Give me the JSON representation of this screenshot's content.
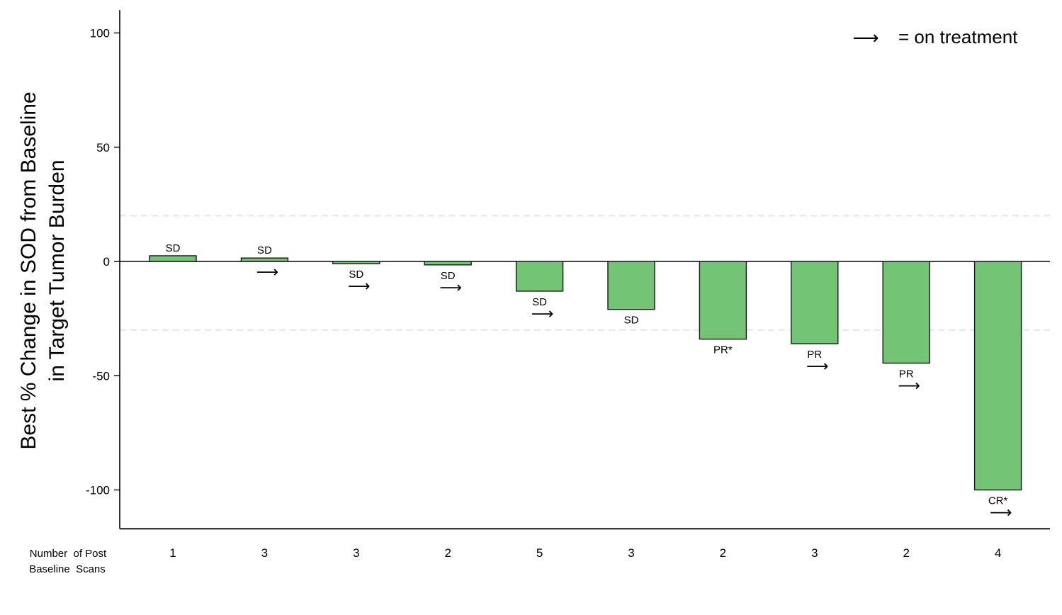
{
  "chart_data": {
    "type": "bar",
    "title": "",
    "ylabel_lines": [
      "Best % Change in SOD from Baseline",
      "in Target Tumor Burden"
    ],
    "xlabel": "",
    "ylim": [
      -117,
      110
    ],
    "yticks": [
      100,
      50,
      0,
      -50,
      -100
    ],
    "reference_lines": [
      20,
      -30
    ],
    "grid": false,
    "bar_color": "#74c476",
    "legend": {
      "symbol": "⟶",
      "text": "= on treatment",
      "placement": "top-right"
    },
    "scan_header_lines": [
      "Number  of Post",
      "Baseline  Scans"
    ],
    "bars": [
      {
        "value": 2.5,
        "response": "SD",
        "on_treatment": false,
        "scans": "1"
      },
      {
        "value": 1.5,
        "response": "SD",
        "on_treatment": true,
        "scans": "3"
      },
      {
        "value": -1,
        "response": "SD",
        "on_treatment": true,
        "scans": "3"
      },
      {
        "value": -1.5,
        "response": "SD",
        "on_treatment": true,
        "scans": "2"
      },
      {
        "value": -13,
        "response": "SD",
        "on_treatment": true,
        "scans": "5"
      },
      {
        "value": -21,
        "response": "SD",
        "on_treatment": false,
        "scans": "3"
      },
      {
        "value": -34,
        "response": "PR*",
        "on_treatment": false,
        "scans": "2"
      },
      {
        "value": -36,
        "response": "PR",
        "on_treatment": true,
        "scans": "3"
      },
      {
        "value": -44.5,
        "response": "PR",
        "on_treatment": true,
        "scans": "2"
      },
      {
        "value": -100,
        "response": "CR*",
        "on_treatment": true,
        "scans": "4"
      }
    ]
  }
}
